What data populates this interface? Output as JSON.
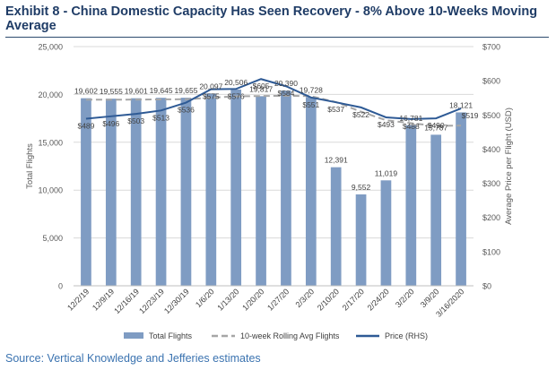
{
  "title": "Exhibit 8 - China Domestic Capacity Has Seen Recovery - 8% Above 10-Weeks Moving Average",
  "source": "Source: Vertical Knowledge and Jefferies estimates",
  "chart_data": {
    "type": "bar",
    "categories": [
      "12/2/19",
      "12/9/19",
      "12/16/19",
      "12/23/19",
      "12/30/19",
      "1/6/20",
      "1/13/20",
      "1/20/20",
      "1/27/20",
      "2/3/20",
      "2/10/20",
      "2/17/20",
      "2/24/20",
      "3/2/20",
      "3/9/20",
      "3/16/2020"
    ],
    "series": [
      {
        "name": "Total Flights",
        "axis": "left",
        "kind": "bar",
        "color": "#7f9cc3",
        "values": [
          19602,
          19555,
          19601,
          19645,
          19655,
          20097,
          20506,
          19817,
          20390,
          19728,
          12391,
          9552,
          11019,
          16781,
          15787,
          18121
        ],
        "labels": [
          "19,602",
          "19,555",
          "19,601",
          "19,645",
          "19,655",
          "20,097",
          "20,506",
          "19,817",
          "20,390",
          "19,728",
          "12,391",
          "9,552",
          "11,019",
          "16,781",
          "15,787",
          "18,121"
        ]
      },
      {
        "name": "10-week Rolling Avg Flights",
        "axis": "left",
        "kind": "dashed-line",
        "color": "#a6a6a6",
        "values": [
          19450,
          19450,
          19460,
          19480,
          19500,
          19650,
          19800,
          19830,
          19860,
          19820,
          19200,
          18200,
          17300,
          17000,
          16700,
          16750
        ]
      },
      {
        "name": "Price (RHS)",
        "axis": "right",
        "kind": "line",
        "color": "#2e5a95",
        "values": [
          489,
          496,
          503,
          513,
          536,
          575,
          576,
          605,
          584,
          551,
          537,
          522,
          493,
          488,
          490,
          519
        ],
        "labels": [
          "$489",
          "$496",
          "$503",
          "$513",
          "$536",
          "$575",
          "$576",
          "$605",
          "$584",
          "$551",
          "$537",
          "$522",
          "$493",
          "$488",
          "$490",
          "$519"
        ]
      }
    ],
    "ylabel": "Total Flights",
    "y2label": "Average Price per Flight (USD)",
    "ylim": [
      0,
      25000
    ],
    "y2lim": [
      0,
      700
    ],
    "yticks": [
      "0",
      "5,000",
      "10,000",
      "15,000",
      "20,000",
      "25,000"
    ],
    "y2ticks": [
      "$0",
      "$100",
      "$200",
      "$300",
      "$400",
      "$500",
      "$600",
      "$700"
    ],
    "grid": true,
    "legend": "bottom"
  }
}
